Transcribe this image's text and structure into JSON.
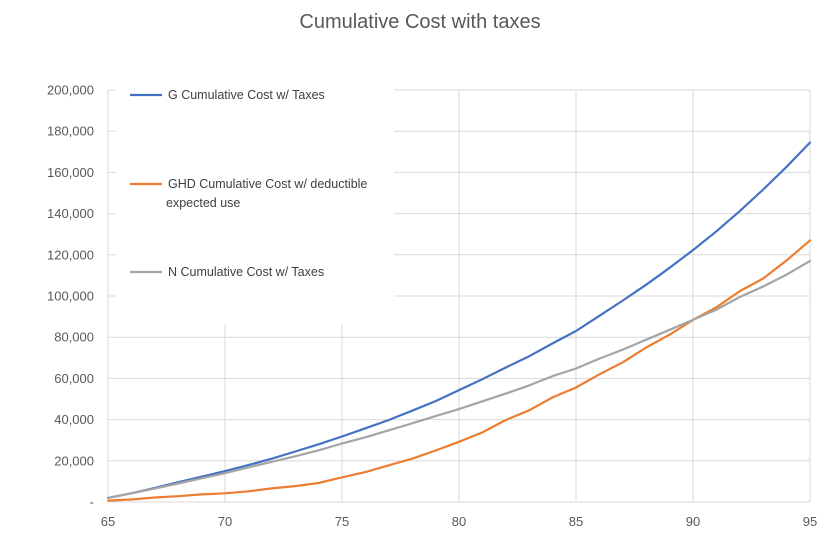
{
  "chart_data": {
    "type": "line",
    "title": "Cumulative Cost with taxes",
    "xlabel": "",
    "ylabel": "",
    "x": [
      65,
      66,
      67,
      68,
      69,
      70,
      71,
      72,
      73,
      74,
      75,
      76,
      77,
      78,
      79,
      80,
      81,
      82,
      83,
      84,
      85,
      86,
      87,
      88,
      89,
      90,
      91,
      92,
      93,
      94,
      95
    ],
    "xlim": [
      65,
      95
    ],
    "ylim": [
      0,
      200000
    ],
    "x_ticks": [
      65,
      70,
      75,
      80,
      85,
      90,
      95
    ],
    "x_tick_labels": [
      "65",
      "70",
      "75",
      "80",
      "85",
      "90",
      "95"
    ],
    "y_ticks": [
      0,
      20000,
      40000,
      60000,
      80000,
      100000,
      120000,
      140000,
      160000,
      180000,
      200000
    ],
    "y_tick_labels": [
      "-",
      "20,000",
      "40,000",
      "60,000",
      "80,000",
      "100,000",
      "120,000",
      "140,000",
      "160,000",
      "180,000",
      "200,000"
    ],
    "grid": true,
    "legend_position": "top-left",
    "series": [
      {
        "name": "G Cumulative Cost w/ Taxes",
        "color": "#4472C4",
        "values": [
          2000,
          4200,
          6800,
          9600,
          12300,
          15000,
          17900,
          21000,
          24500,
          28000,
          31800,
          35800,
          39800,
          44300,
          49000,
          54300,
          59600,
          65300,
          70800,
          77000,
          83000,
          90400,
          97800,
          105500,
          113700,
          122300,
          131400,
          141200,
          151700,
          162700,
          174500
        ]
      },
      {
        "name": "GHD Cumulative Cost w/ deductible expected use",
        "name_lines": [
          "GHD Cumulative Cost w/ deductible",
          "expected use"
        ],
        "color": "#ED7D31",
        "values": [
          700,
          1200,
          2200,
          2800,
          3700,
          4200,
          5200,
          6600,
          7700,
          9200,
          12000,
          14500,
          17800,
          21000,
          25000,
          29200,
          33800,
          39800,
          44500,
          50800,
          55600,
          62000,
          67800,
          75000,
          81200,
          88400,
          94500,
          102400,
          108500,
          117300,
          127000
        ]
      },
      {
        "name": "N Cumulative Cost w/ Taxes",
        "color": "#A5A5A5",
        "values": [
          2000,
          4200,
          6500,
          9000,
          11500,
          14000,
          16800,
          19500,
          22200,
          25100,
          28400,
          31400,
          34800,
          38200,
          41700,
          45100,
          48900,
          52600,
          56600,
          61100,
          64800,
          69600,
          74000,
          78800,
          83600,
          88400,
          93400,
          99500,
          104600,
          110400,
          117000
        ]
      }
    ]
  }
}
